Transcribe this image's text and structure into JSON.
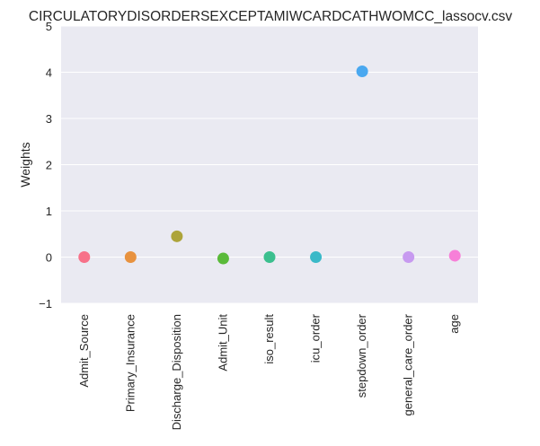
{
  "chart_data": {
    "type": "scatter",
    "title": "CIRCULATORYDISORDERSEXCEPTAMIWCARDCATHWOMCC_lassocv.csv",
    "xlabel": "",
    "ylabel": "Weights",
    "ylim": [
      -1,
      5
    ],
    "yticks": [
      -1,
      0,
      1,
      2,
      3,
      4,
      5
    ],
    "grid": true,
    "legend": "none",
    "categories": [
      "Admit_Source",
      "Primary_Insurance",
      "Discharge_Disposition",
      "Admit_Unit",
      "iso_result",
      "icu_order",
      "stepdown_order",
      "general_care_order",
      "age"
    ],
    "values": [
      0.0,
      0.0,
      0.45,
      -0.03,
      0.0,
      0.0,
      4.02,
      0.0,
      0.03
    ],
    "colors": [
      "#f77189",
      "#dc8932",
      "#ae9d31",
      "#77ab31",
      "#33b07a",
      "#36ada4",
      "#38a9c5",
      "#cc7af4",
      "#f565cc"
    ],
    "point_colors_rendered": [
      "#f77189",
      "#e8923f",
      "#ada43a",
      "#5aba3a",
      "#3bbf8e",
      "#3ab9c8",
      "#4aa8f0",
      "#c79af0",
      "#f77fd8"
    ],
    "background_color": "#eaeaf2",
    "grid_color": "#ffffff"
  }
}
